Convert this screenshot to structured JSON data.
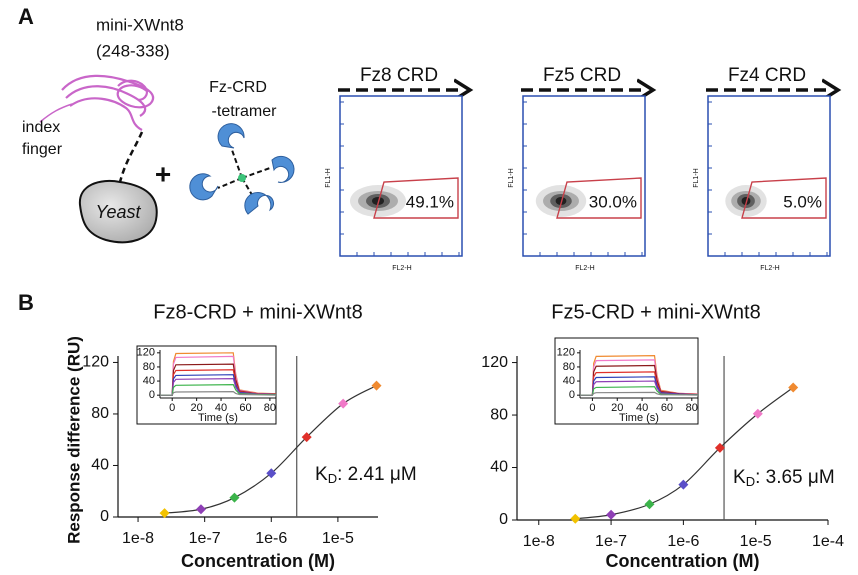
{
  "panel_a": {
    "label": "A",
    "ligand": "mini-XWnt8",
    "ligand_range": "(248-338)",
    "finger_line1": "index",
    "finger_line2": "finger",
    "cell": "Yeast",
    "plus": "+",
    "tetramer_line1": "Fz-CRD",
    "tetramer_line2": "-tetramer",
    "flow_plots": [
      {
        "title": "Fz8 CRD",
        "percent": "49.1%",
        "y_label": "FL1-H",
        "x_label": "FL2-H"
      },
      {
        "title": "Fz5 CRD",
        "percent": "30.0%",
        "y_label": "FL1-H",
        "x_label": "FL2-H"
      },
      {
        "title": "Fz4 CRD",
        "percent": "5.0%",
        "y_label": "FL1-H",
        "x_label": "FL2-H"
      }
    ]
  },
  "panel_b_label": "B",
  "chart_data": [
    {
      "type": "scatter",
      "title": "Fz8-CRD + mini-XWnt8",
      "x_label": "Concentration (M)",
      "y_label": "Response difference (RU)",
      "x_scale": "log",
      "x": [
        2.5e-08,
        8.8e-08,
        2.8e-07,
        1e-06,
        3.4e-06,
        1.2e-05,
        3.8e-05
      ],
      "values": [
        3,
        6,
        15,
        34,
        62,
        88,
        102
      ],
      "point_colors": [
        "#f2c200",
        "#8e3fb5",
        "#3bb34a",
        "#5a4fc8",
        "#e0302a",
        "#f07ac8",
        "#f08a30"
      ],
      "curve_color": "#333333",
      "xlim": [
        5e-09,
        4e-05
      ],
      "xticks": [
        {
          "value": 1e-08,
          "label": "1e-8"
        },
        {
          "value": 1e-07,
          "label": "1e-7"
        },
        {
          "value": 1e-06,
          "label": "1e-6"
        },
        {
          "value": 1e-05,
          "label": "1e-5"
        }
      ],
      "ylim": [
        0,
        125
      ],
      "yticks": [
        0,
        40,
        80,
        120
      ],
      "kd": {
        "value": 2.41e-06,
        "symbol": "K",
        "subscript": "D",
        "text": ": 2.41 μM"
      },
      "inset": {
        "type": "line",
        "x_label": "Time (s)",
        "x": [
          -10,
          0,
          1,
          3,
          50,
          52,
          55,
          70,
          85
        ],
        "xlim": [
          -10,
          85
        ],
        "ylim": [
          -8,
          128
        ],
        "xticks": [
          0,
          20,
          40,
          60,
          80
        ],
        "yticks": [
          0,
          40,
          80,
          120
        ],
        "series": [
          {
            "color": "#f08a30",
            "values": [
              0,
              0,
              95,
              118,
              120,
              60,
              15,
              6,
              4
            ]
          },
          {
            "color": "#f07ac8",
            "values": [
              0,
              0,
              88,
              107,
              110,
              55,
              14,
              5,
              3
            ]
          },
          {
            "color": "#8b1a1a",
            "values": [
              0,
              0,
              70,
              86,
              88,
              44,
              12,
              4,
              3
            ]
          },
          {
            "color": "#e0302a",
            "values": [
              0,
              0,
              58,
              70,
              72,
              36,
              10,
              4,
              2
            ]
          },
          {
            "color": "#2b3fb8",
            "values": [
              0,
              0,
              46,
              56,
              58,
              29,
              8,
              3,
              2
            ]
          },
          {
            "color": "#8e3fb5",
            "values": [
              0,
              0,
              36,
              45,
              47,
              23,
              6,
              3,
              1
            ]
          },
          {
            "color": "#3bb34a",
            "values": [
              0,
              0,
              22,
              28,
              30,
              15,
              4,
              2,
              1
            ]
          },
          {
            "color": "#888888",
            "values": [
              0,
              0,
              7,
              9,
              10,
              5,
              2,
              1,
              0
            ]
          }
        ]
      }
    },
    {
      "type": "scatter",
      "title": "Fz5-CRD + mini-XWnt8",
      "x_label": "Concentration (M)",
      "x_scale": "log",
      "x": [
        3.2e-08,
        1e-07,
        3.4e-07,
        1e-06,
        3.2e-06,
        1.07e-05,
        3.3e-05
      ],
      "values": [
        1,
        4,
        12,
        27,
        55,
        81,
        101
      ],
      "point_colors": [
        "#f2c200",
        "#8e3fb5",
        "#3bb34a",
        "#5a4fc8",
        "#e0302a",
        "#f07ac8",
        "#f08a30"
      ],
      "curve_color": "#333333",
      "xlim": [
        5e-09,
        0.0001
      ],
      "xticks": [
        {
          "value": 1e-08,
          "label": "1e-8"
        },
        {
          "value": 1e-07,
          "label": "1e-7"
        },
        {
          "value": 1e-06,
          "label": "1e-6"
        },
        {
          "value": 1e-05,
          "label": "1e-5"
        },
        {
          "value": 0.0001,
          "label": "1e-4"
        }
      ],
      "ylim": [
        0,
        125
      ],
      "yticks": [
        0,
        40,
        80,
        120
      ],
      "kd": {
        "value": 3.65e-06,
        "symbol": "K",
        "subscript": "D",
        "text": ": 3.65 μM"
      },
      "inset": {
        "type": "line",
        "x_label": "Time (s)",
        "x": [
          -10,
          0,
          1,
          3,
          50,
          52,
          55,
          70,
          85
        ],
        "xlim": [
          -10,
          85
        ],
        "ylim": [
          -8,
          128
        ],
        "xticks": [
          0,
          20,
          40,
          60,
          80
        ],
        "yticks": [
          0,
          40,
          80,
          120
        ],
        "series": [
          {
            "color": "#f08a30",
            "values": [
              0,
              0,
              90,
              110,
              112,
              56,
              14,
              5,
              3
            ]
          },
          {
            "color": "#f07ac8",
            "values": [
              0,
              0,
              80,
              98,
              100,
              50,
              12,
              5,
              3
            ]
          },
          {
            "color": "#8b1a1a",
            "values": [
              0,
              0,
              66,
              82,
              84,
              42,
              11,
              4,
              2
            ]
          },
          {
            "color": "#e0302a",
            "values": [
              0,
              0,
              52,
              64,
              66,
              33,
              9,
              3,
              2
            ]
          },
          {
            "color": "#2b3fb8",
            "values": [
              0,
              0,
              40,
              50,
              52,
              26,
              7,
              3,
              1
            ]
          },
          {
            "color": "#8e3fb5",
            "values": [
              0,
              0,
              30,
              38,
              40,
              20,
              5,
              2,
              1
            ]
          },
          {
            "color": "#3bb34a",
            "values": [
              0,
              0,
              18,
              22,
              24,
              12,
              3,
              1,
              1
            ]
          },
          {
            "color": "#888888",
            "values": [
              0,
              0,
              5,
              7,
              8,
              4,
              1,
              1,
              0
            ]
          }
        ]
      }
    }
  ]
}
